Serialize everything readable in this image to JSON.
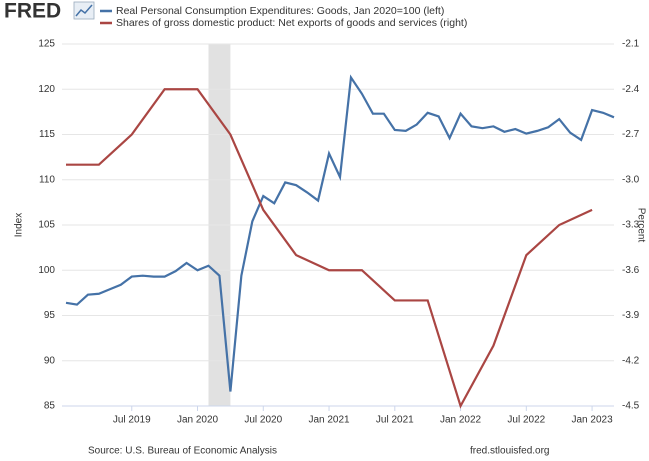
{
  "logo": "FRED",
  "chart_data": {
    "type": "line",
    "ylabel": "Index",
    "y2label": "Percent",
    "source": "Source: U.S. Bureau of Economic Analysis",
    "site": "fred.stlouisfed.org",
    "xlim": [
      "2019-01",
      "2023-03"
    ],
    "xticks": [
      {
        "value": "2019-07",
        "label": "Jul 2019"
      },
      {
        "value": "2020-01",
        "label": "Jan 2020"
      },
      {
        "value": "2020-07",
        "label": "Jul 2020"
      },
      {
        "value": "2021-01",
        "label": "Jan 2021"
      },
      {
        "value": "2021-07",
        "label": "Jul 2021"
      },
      {
        "value": "2022-01",
        "label": "Jan 2022"
      },
      {
        "value": "2022-07",
        "label": "Jul 2022"
      },
      {
        "value": "2023-01",
        "label": "Jan 2023"
      }
    ],
    "ylim": [
      85,
      125
    ],
    "yticks": [
      85,
      90,
      95,
      100,
      105,
      110,
      115,
      120,
      125
    ],
    "y2lim": [
      -4.5,
      -2.1
    ],
    "y2ticks": [
      -4.5,
      -4.2,
      -3.9,
      -3.6,
      -3.3,
      {
        "value": -3.0,
        "label": "-3.0"
      },
      -2.7,
      -2.4,
      -2.1
    ],
    "grid": true,
    "recessions": [
      [
        "2020-02",
        "2020-04"
      ]
    ],
    "series": [
      {
        "name": "Real Personal Consumption Expenditures: Goods, Jan 2020=100 (left)",
        "color": "#4572a7",
        "x": [
          "2019-01",
          "2019-02",
          "2019-03",
          "2019-04",
          "2019-05",
          "2019-06",
          "2019-07",
          "2019-08",
          "2019-09",
          "2019-10",
          "2019-11",
          "2019-12",
          "2020-01",
          "2020-02",
          "2020-03",
          "2020-04",
          "2020-05",
          "2020-06",
          "2020-07",
          "2020-08",
          "2020-09",
          "2020-10",
          "2020-11",
          "2020-12",
          "2021-01",
          "2021-02",
          "2021-03",
          "2021-04",
          "2021-05",
          "2021-06",
          "2021-07",
          "2021-08",
          "2021-09",
          "2021-10",
          "2021-11",
          "2021-12",
          "2022-01",
          "2022-02",
          "2022-03",
          "2022-04",
          "2022-05",
          "2022-06",
          "2022-07",
          "2022-08",
          "2022-09",
          "2022-10",
          "2022-11",
          "2022-12",
          "2023-01",
          "2023-02",
          "2023-03"
        ],
        "values": [
          96.4,
          96.2,
          97.3,
          97.4,
          97.9,
          98.4,
          99.3,
          99.4,
          99.3,
          99.3,
          99.9,
          100.8,
          100.0,
          100.5,
          99.4,
          86.6,
          99.4,
          105.4,
          108.2,
          107.4,
          109.7,
          109.4,
          108.6,
          107.7,
          112.9,
          110.3,
          121.3,
          119.5,
          117.3,
          117.3,
          115.5,
          115.4,
          116.1,
          117.4,
          117.0,
          114.6,
          117.3,
          115.9,
          115.7,
          115.9,
          115.3,
          115.6,
          115.1,
          115.4,
          115.8,
          116.7,
          115.2,
          114.4,
          117.7,
          117.4,
          116.9
        ]
      },
      {
        "name": "Shares of gross domestic product: Net exports of goods and services (right)",
        "color": "#aa4643",
        "axis": "y2",
        "x": [
          "2019-01",
          "2019-04",
          "2019-07",
          "2019-10",
          "2020-01",
          "2020-04",
          "2020-07",
          "2020-10",
          "2021-01",
          "2021-04",
          "2021-07",
          "2021-10",
          "2022-01",
          "2022-04",
          "2022-07",
          "2022-10",
          "2023-01"
        ],
        "values": [
          -2.9,
          -2.9,
          -2.7,
          -2.4,
          -2.4,
          -2.7,
          -3.2,
          -3.5,
          -3.6,
          -3.6,
          -3.8,
          -3.8,
          -4.5,
          -4.1,
          -3.5,
          -3.3,
          -3.2
        ]
      }
    ]
  }
}
